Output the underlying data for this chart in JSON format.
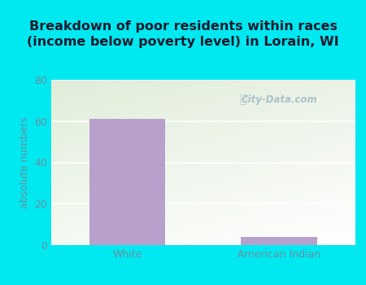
{
  "title": "Breakdown of poor residents within races\n(income below poverty level) in Lorain, WI",
  "categories": [
    "White",
    "American Indian"
  ],
  "values": [
    61,
    4
  ],
  "bar_color": "#b8a0cc",
  "ylabel": "absolute numbers",
  "ylim": [
    0,
    80
  ],
  "yticks": [
    0,
    20,
    40,
    60,
    80
  ],
  "bg_outer": "#00e8f0",
  "grid_color": "#ffffff",
  "title_fontsize": 11.5,
  "label_fontsize": 9,
  "tick_fontsize": 9,
  "bar_width": 0.5,
  "watermark": "City-Data.com",
  "tick_color": "#6a8fa0",
  "ylabel_color": "#6a8fa0"
}
